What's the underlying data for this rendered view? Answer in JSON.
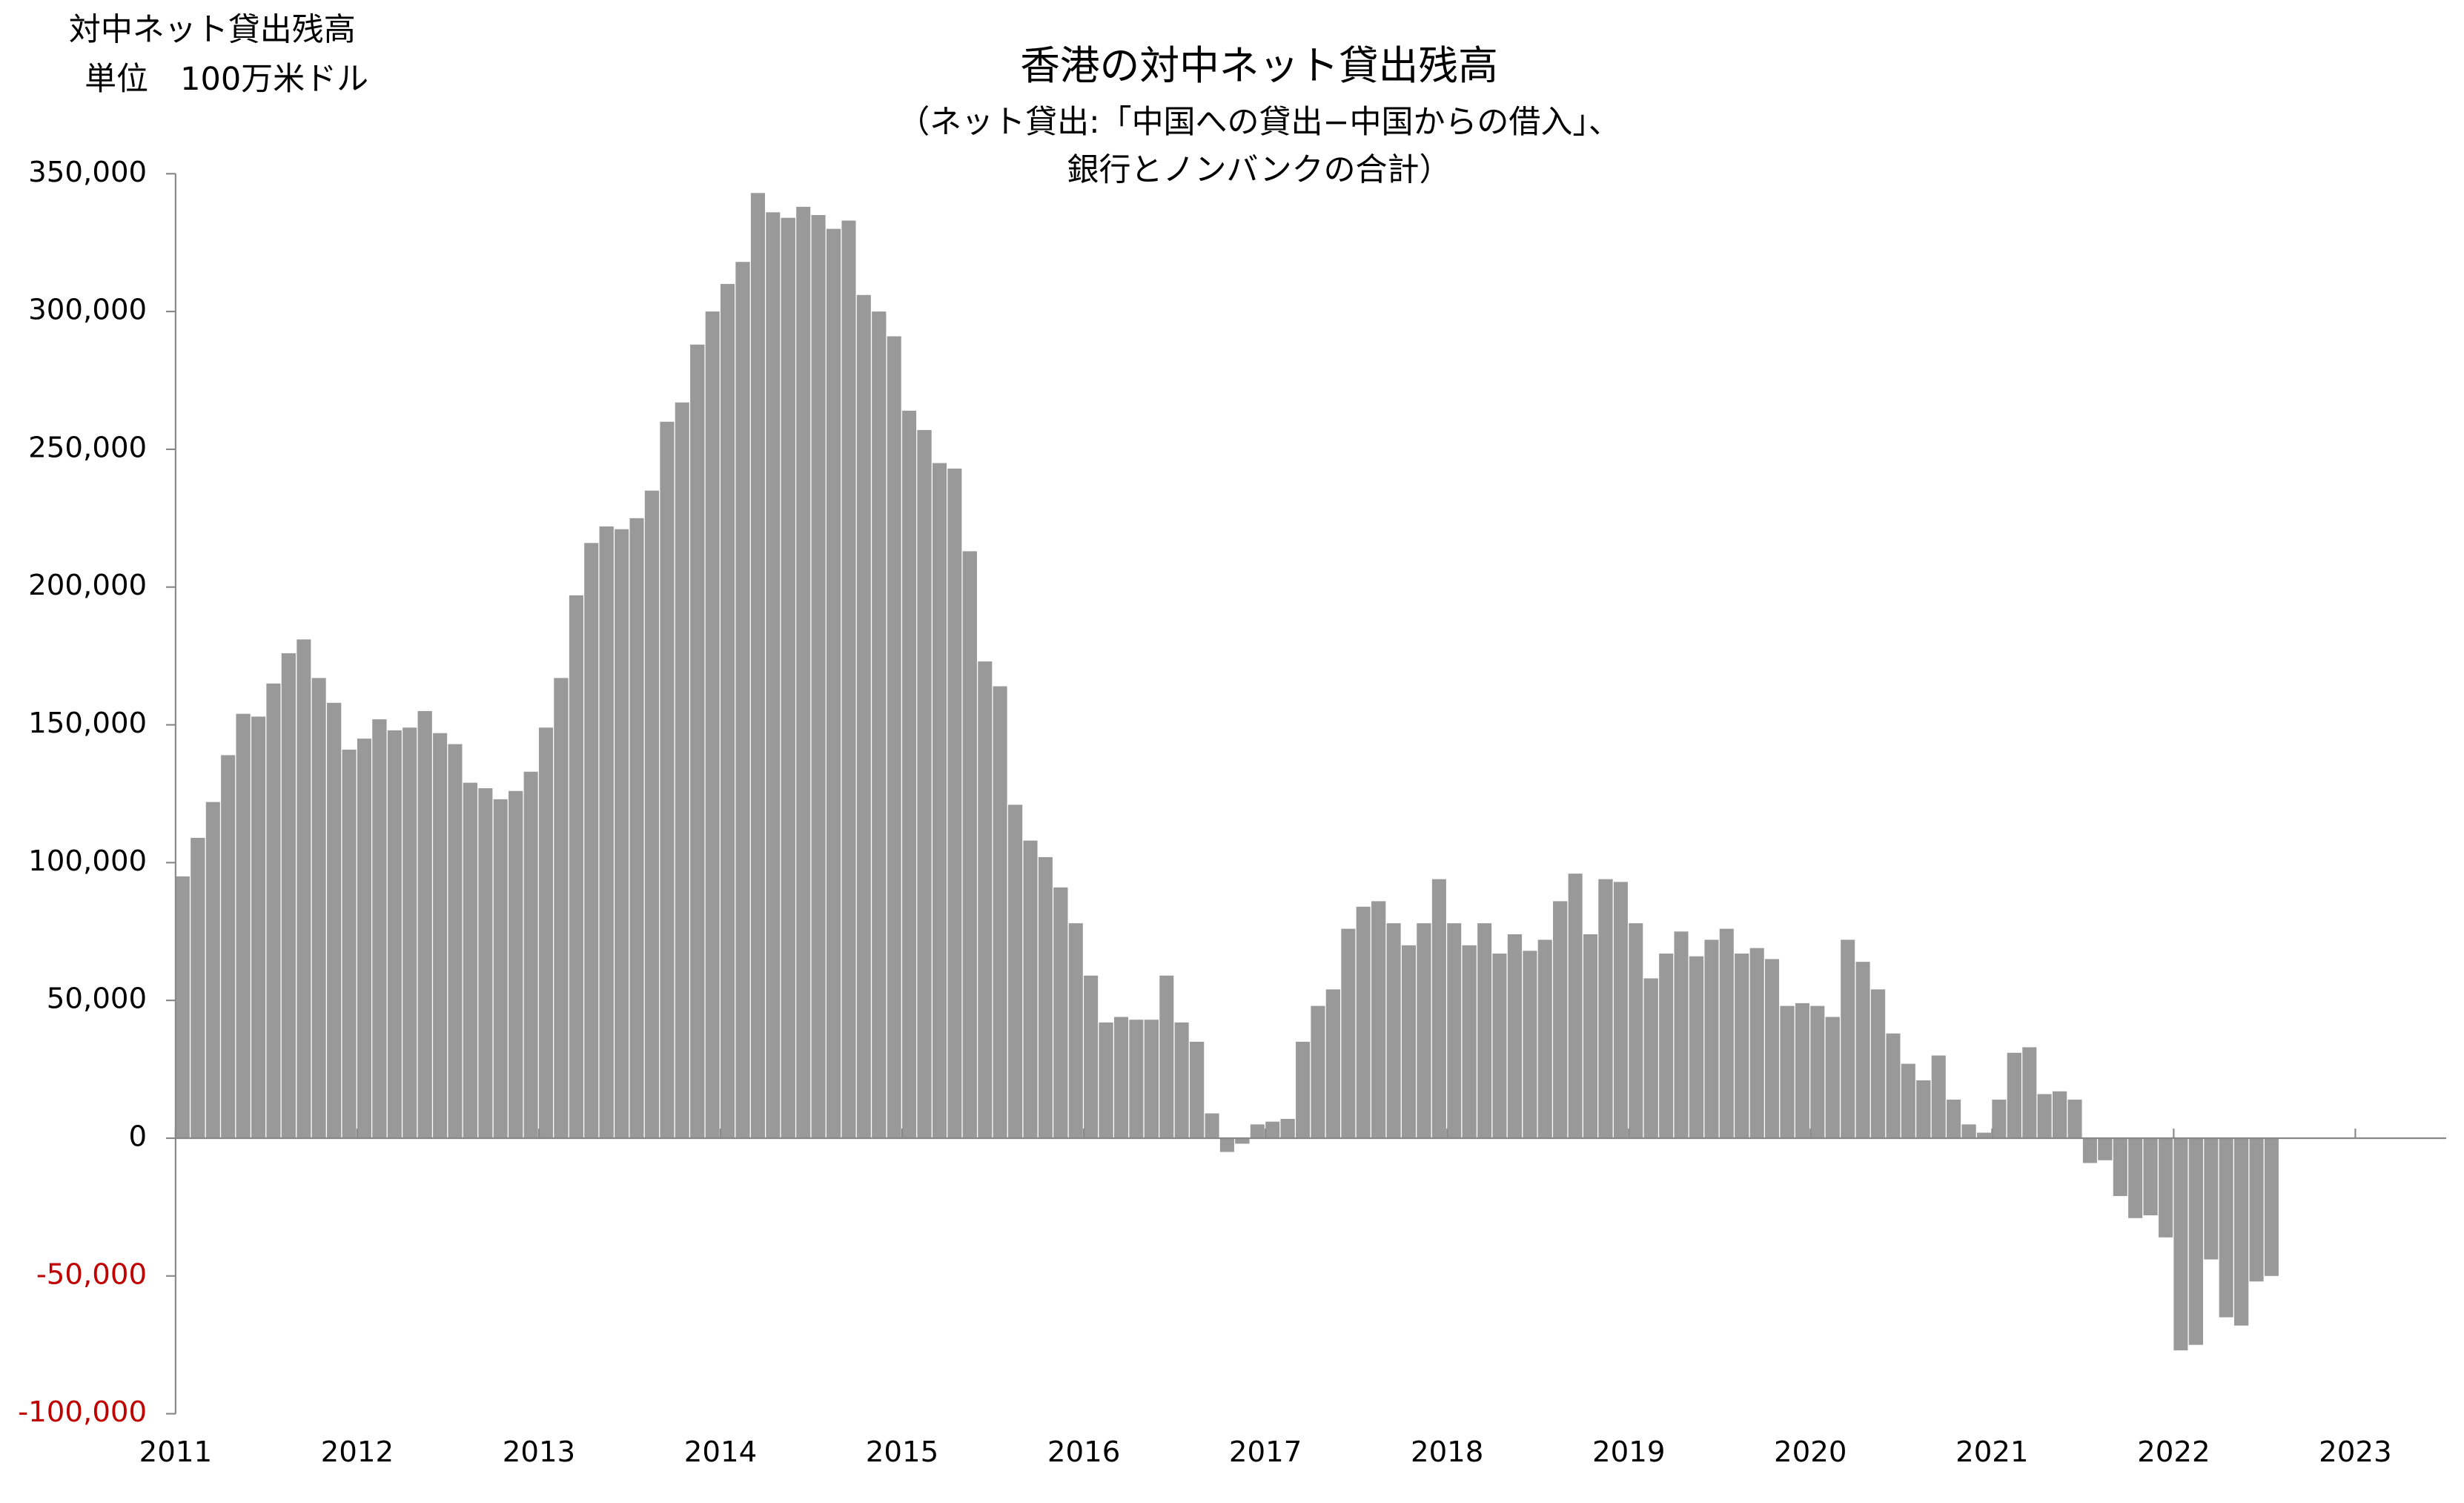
{
  "chart_data": {
    "type": "bar",
    "title": "香港の対中ネット貸出残高",
    "subtitle": [
      "（ネット貸出:「中国への貸出−中国からの借入」、",
      "銀行とノンバンクの合計）"
    ],
    "y_label": [
      "対中ネット貸出残高",
      "単位　100万米ドル"
    ],
    "color": "#999999",
    "negative_tick_color": "#c00000",
    "x": [
      2011,
      2011.083,
      2011.167,
      2011.25,
      2011.333,
      2011.417,
      2011.5,
      2011.583,
      2011.667,
      2011.75,
      2011.833,
      2011.917,
      2012,
      2012.083,
      2012.167,
      2012.25,
      2012.333,
      2012.417,
      2012.5,
      2012.583,
      2012.667,
      2012.75,
      2012.833,
      2012.917,
      2013,
      2013.083,
      2013.167,
      2013.25,
      2013.333,
      2013.417,
      2013.5,
      2013.583,
      2013.667,
      2013.75,
      2013.833,
      2013.917,
      2014,
      2014.083,
      2014.167,
      2014.25,
      2014.333,
      2014.417,
      2014.5,
      2014.583,
      2014.667,
      2014.75,
      2014.833,
      2014.917,
      2015,
      2015.083,
      2015.167,
      2015.25,
      2015.333,
      2015.417,
      2015.5,
      2015.583,
      2015.667,
      2015.75,
      2015.833,
      2015.917,
      2016,
      2016.083,
      2016.167,
      2016.25,
      2016.333,
      2016.417,
      2016.5,
      2016.583,
      2016.667,
      2016.75,
      2016.833,
      2016.917,
      2017,
      2017.083,
      2017.167,
      2017.25,
      2017.333,
      2017.417,
      2017.5,
      2017.583,
      2017.667,
      2017.75,
      2017.833,
      2017.917,
      2018,
      2018.083,
      2018.167,
      2018.25,
      2018.333,
      2018.417,
      2018.5,
      2018.583,
      2018.667,
      2018.75,
      2018.833,
      2018.917,
      2019,
      2019.083,
      2019.167,
      2019.25,
      2019.333,
      2019.417,
      2019.5,
      2019.583,
      2019.667,
      2019.75,
      2019.833,
      2019.917,
      2020,
      2020.083,
      2020.167,
      2020.25,
      2020.333,
      2020.417,
      2020.5,
      2020.583,
      2020.667,
      2020.75,
      2020.833,
      2020.917,
      2021,
      2021.083,
      2021.167,
      2021.25,
      2021.333,
      2021.417,
      2021.5,
      2021.583,
      2021.667,
      2021.75,
      2021.833,
      2021.917,
      2022,
      2022.083,
      2022.167,
      2022.25,
      2022.333,
      2022.417,
      2022.5
    ],
    "values": [
      95000,
      109000,
      122000,
      139000,
      154000,
      153000,
      165000,
      176000,
      181000,
      167000,
      158000,
      141000,
      145000,
      152000,
      148000,
      149000,
      155000,
      147000,
      143000,
      129000,
      127000,
      123000,
      126000,
      133000,
      149000,
      167000,
      197000,
      216000,
      222000,
      221000,
      225000,
      235000,
      260000,
      267000,
      288000,
      300000,
      310000,
      318000,
      343000,
      336000,
      334000,
      338000,
      335000,
      330000,
      333000,
      306000,
      300000,
      291000,
      264000,
      257000,
      245000,
      243000,
      213000,
      173000,
      164000,
      121000,
      108000,
      102000,
      91000,
      78000,
      59000,
      42000,
      44000,
      43000,
      43000,
      59000,
      42000,
      35000,
      9000,
      -5000,
      -2000,
      5000,
      6000,
      7000,
      35000,
      48000,
      54000,
      76000,
      84000,
      86000,
      78000,
      70000,
      78000,
      94000,
      78000,
      70000,
      78000,
      67000,
      74000,
      68000,
      72000,
      86000,
      96000,
      74000,
      94000,
      93000,
      78000,
      58000,
      67000,
      75000,
      66000,
      72000,
      76000,
      67000,
      69000,
      65000,
      48000,
      49000,
      48000,
      44000,
      72000,
      64000,
      54000,
      38000,
      27000,
      21000,
      30000,
      14000,
      5000,
      2000,
      14000,
      31000,
      33000,
      16000,
      17000,
      14000,
      -9000,
      -8000,
      -21000,
      -29000,
      -28000,
      -36000,
      -77000,
      -75000,
      -44000,
      -65000,
      -68000,
      -52000,
      -50000
    ],
    "xlim": [
      2011,
      2023.5
    ],
    "xticks": [
      2011,
      2012,
      2013,
      2014,
      2015,
      2016,
      2017,
      2018,
      2019,
      2020,
      2021,
      2022,
      2023
    ],
    "ylim": [
      -100000,
      350000
    ],
    "yticks": [
      {
        "value": -100000,
        "label": "-100,000"
      },
      {
        "value": -50000,
        "label": "-50,000"
      },
      0,
      {
        "value": 50000,
        "label": "50,000"
      },
      {
        "value": 100000,
        "label": "100,000"
      },
      {
        "value": 150000,
        "label": "150,000"
      },
      {
        "value": 200000,
        "label": "200,000"
      },
      {
        "value": 250000,
        "label": "250,000"
      },
      {
        "value": 300000,
        "label": "300,000"
      },
      {
        "value": 350000,
        "label": "350,000"
      }
    ],
    "grid": false
  }
}
